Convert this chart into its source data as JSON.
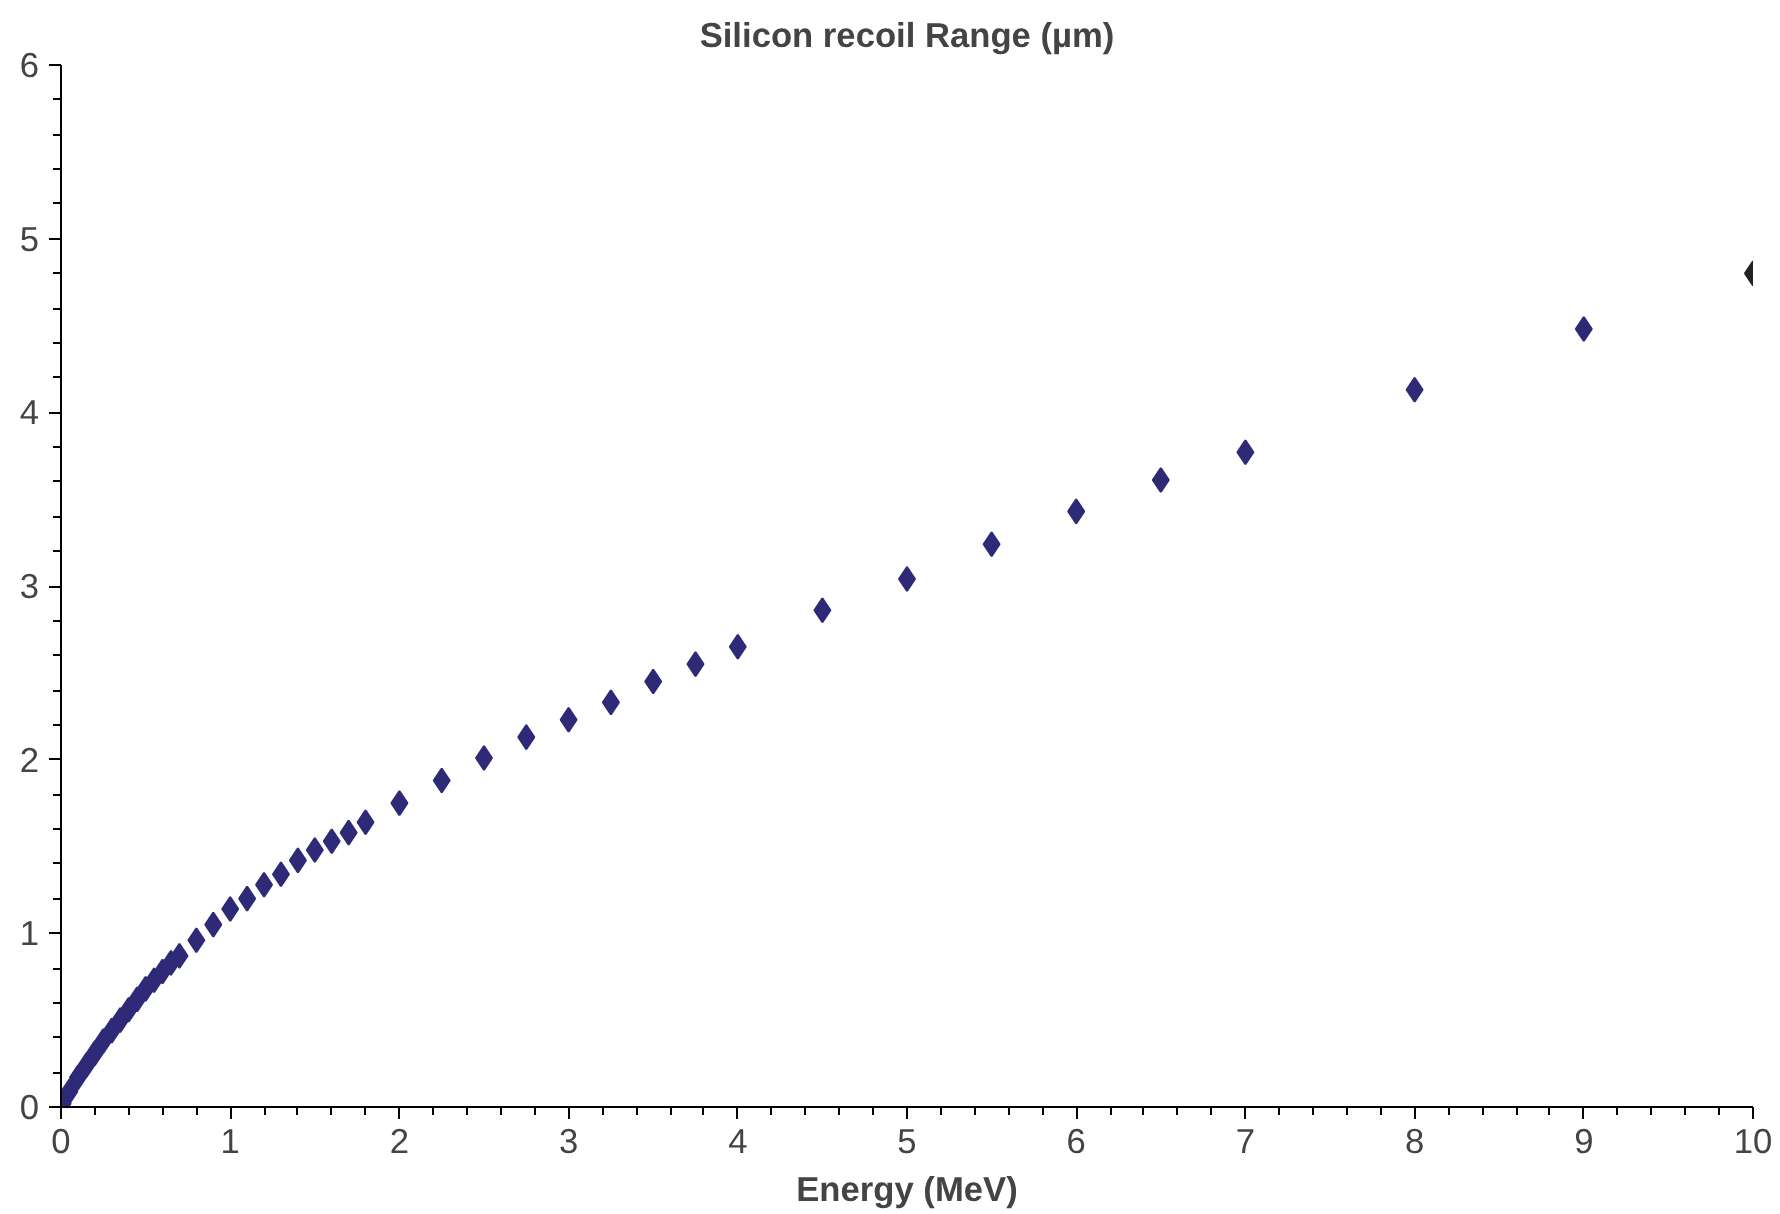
{
  "chart_data": {
    "type": "scatter",
    "title": "Silicon recoil Range (µm)",
    "xlabel": "Energy (MeV)",
    "x": [
      0.01,
      0.05,
      0.1,
      0.15,
      0.2,
      0.25,
      0.3,
      0.35,
      0.4,
      0.45,
      0.5,
      0.55,
      0.6,
      0.65,
      0.7,
      0.8,
      0.9,
      1.0,
      1.1,
      1.2,
      1.3,
      1.4,
      1.5,
      1.6,
      1.7,
      1.8,
      2,
      2.25,
      2.5,
      2.75,
      3,
      3.25,
      3.5,
      3.75,
      4,
      4.5,
      5,
      5.5,
      6,
      6.5,
      7,
      8,
      9,
      10
    ],
    "values": [
      0.02,
      0.09,
      0.17,
      0.24,
      0.31,
      0.38,
      0.44,
      0.5,
      0.56,
      0.62,
      0.68,
      0.73,
      0.78,
      0.83,
      0.87,
      0.96,
      1.05,
      1.14,
      1.2,
      1.28,
      1.34,
      1.42,
      1.48,
      1.53,
      1.58,
      1.64,
      1.75,
      1.88,
      2.01,
      2.13,
      2.23,
      2.33,
      2.45,
      2.55,
      2.65,
      2.86,
      3.04,
      3.24,
      3.43,
      3.61,
      3.77,
      4.13,
      4.48,
      4.8
    ],
    "colors": [
      "#2e2a78",
      "#2e2a78",
      "#2e2a78",
      "#2e2a78",
      "#2e2a78",
      "#2e2a78",
      "#2e2a78",
      "#2e2a78",
      "#2e2a78",
      "#2e2a78",
      "#2e2a78",
      "#2e2a78",
      "#2e2a78",
      "#2e2a78",
      "#2e2a78",
      "#2e2a78",
      "#2e2a78",
      "#2e2a78",
      "#2e2a78",
      "#2e2a78",
      "#2e2a78",
      "#2e2a78",
      "#2e2a78",
      "#2e2a78",
      "#2e2a78",
      "#2e2a78",
      "#2e2a78",
      "#2e2a78",
      "#2e2a78",
      "#2e2a78",
      "#2e2a78",
      "#2e2a78",
      "#2e2a78",
      "#2e2a78",
      "#2e2a78",
      "#2e2a78",
      "#2e2a78",
      "#2e2a78",
      "#2e2a78",
      "#2e2a78",
      "#2e2a78",
      "#2e2a78",
      "#2e2a78",
      "#222222"
    ],
    "marker": "diamond",
    "grid": false,
    "xlim": [
      0,
      10
    ],
    "xticks": [
      0,
      1,
      2,
      3,
      4,
      5,
      6,
      7,
      8,
      9,
      10
    ],
    "ylim": [
      0,
      6
    ],
    "yticks": [
      0,
      1,
      2,
      3,
      4,
      5,
      6
    ]
  }
}
